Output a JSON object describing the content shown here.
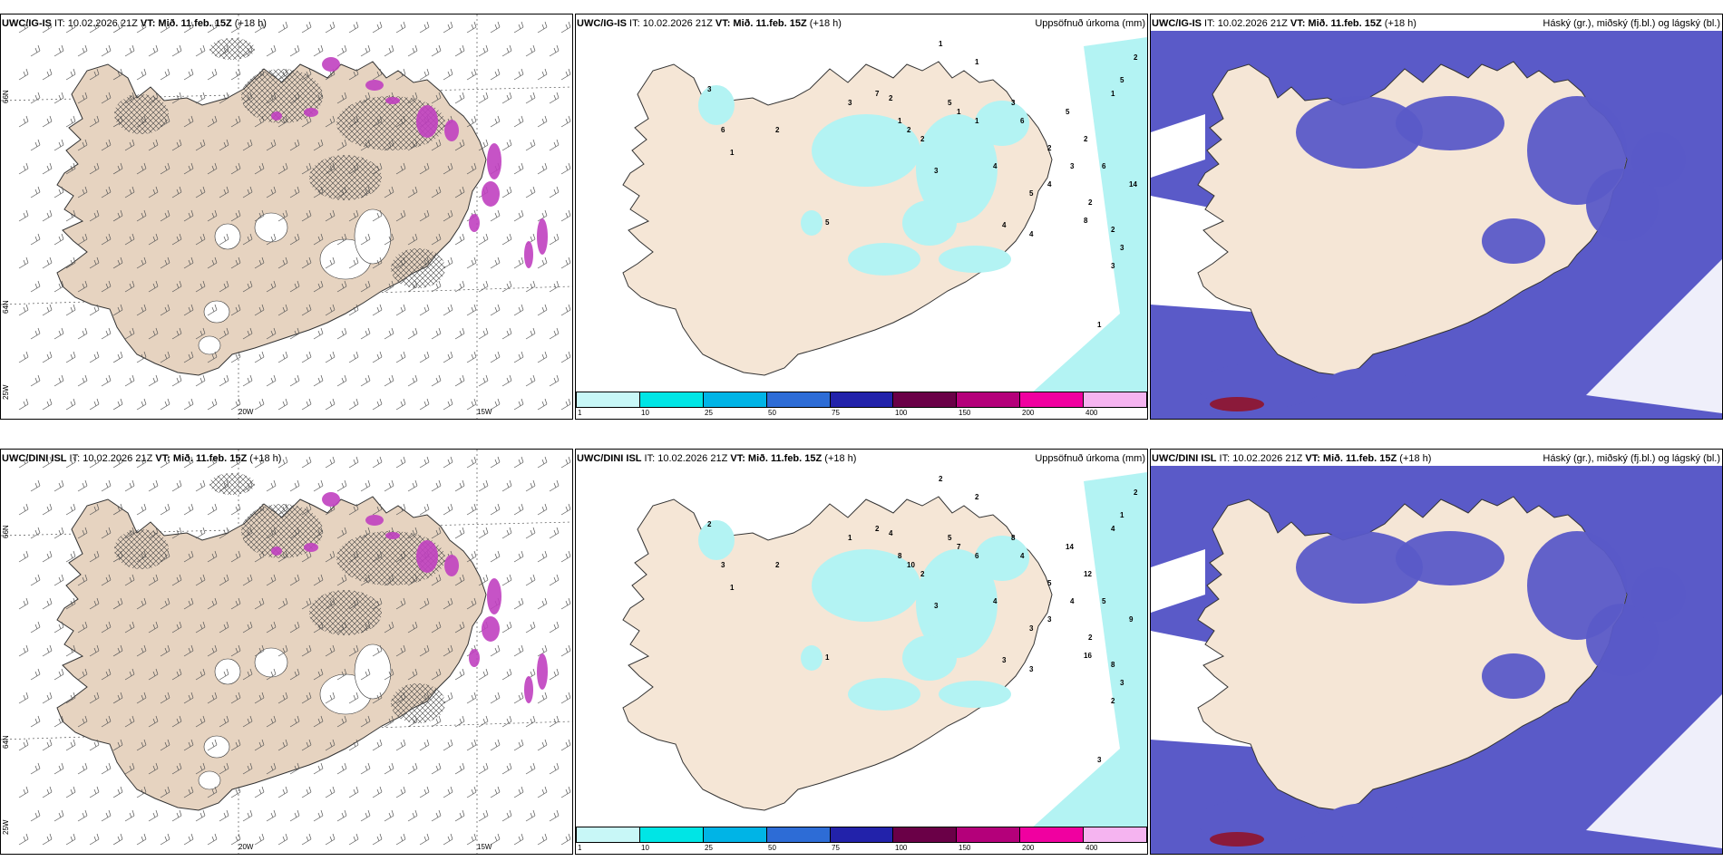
{
  "rows": [
    {
      "model": "UWC/IG-IS",
      "it_label": "IT:",
      "it_value": "10.02.2026 21Z",
      "vt_label": "VT:",
      "vt_value": "Mið. 11.feb. 15Z",
      "lead": "(+18 h)",
      "precip_numbers": [
        "1",
        "1",
        "5",
        "2",
        "1",
        "3",
        "3",
        "7",
        "2",
        "1",
        "2",
        "2",
        "3",
        "5",
        "1",
        "1",
        "4",
        "6",
        "2",
        "5",
        "2",
        "5",
        "4",
        "3",
        "2",
        "6",
        "14",
        "8",
        "2",
        "3",
        "3",
        "4",
        "4",
        "5",
        "2",
        "6",
        "3",
        "1",
        "1"
      ]
    },
    {
      "model": "UWC/DINI ISL",
      "it_label": "IT:",
      "it_value": "10.02.2026 21Z",
      "vt_label": "VT:",
      "vt_value": "Mið. 11.feb. 15Z",
      "lead": "(+18 h)",
      "precip_numbers": [
        "2",
        "2",
        "1",
        "2",
        "4",
        "8",
        "1",
        "2",
        "4",
        "8",
        "10",
        "2",
        "3",
        "5",
        "7",
        "6",
        "4",
        "4",
        "5",
        "14",
        "12",
        "3",
        "3",
        "4",
        "2",
        "5",
        "9",
        "16",
        "8",
        "3",
        "2",
        "3",
        "3",
        "1",
        "2",
        "3",
        "2",
        "1",
        "3"
      ]
    }
  ],
  "precip_title": "Uppsöfnuð úrkoma (mm)",
  "cloud_title": "Háský (gr.), miðský (fj.bl.) og lágský (bl.)",
  "axis_labels": {
    "lat66": "66N",
    "lat64": "64N",
    "lon20": "20W",
    "lon15": "15W",
    "lon25": "25W"
  },
  "colorbar": {
    "ticks": [
      "1",
      "10",
      "25",
      "50",
      "75",
      "100",
      "150",
      "200",
      "400"
    ],
    "colors": [
      "#c8f7f7",
      "#00e5e5",
      "#00b4e6",
      "#2d6cd6",
      "#2222aa",
      "#6a0047",
      "#b4007a",
      "#f000a0",
      "#f5b4f0"
    ]
  },
  "colors": {
    "land": "#f5e6d6",
    "land_wind": "#e6d3c0",
    "precip_light": "#b3f3f3",
    "cloud_high": "#5a5ac8",
    "cloud_mid": "#3b6fe0",
    "cloud_low": "#8fd8f0",
    "snow_magenta": "#c040c0"
  }
}
